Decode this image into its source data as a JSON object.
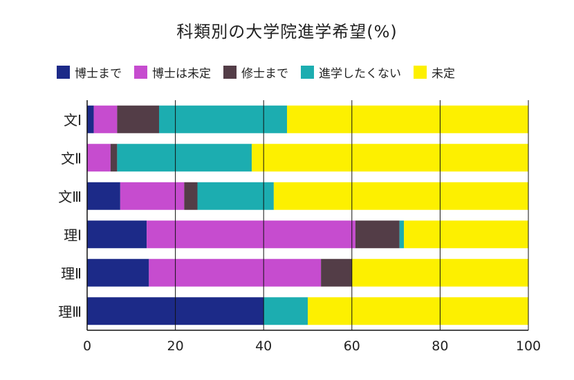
{
  "chart_data": {
    "type": "bar",
    "orientation": "horizontal",
    "stacked": true,
    "title": "科類別の大学院進学希望(%)",
    "categories": [
      "文Ⅰ",
      "文Ⅱ",
      "文Ⅲ",
      "理Ⅰ",
      "理Ⅱ",
      "理Ⅲ"
    ],
    "series": [
      {
        "name": "博士まで",
        "color": "#1c2a88",
        "values": [
          1.5,
          0,
          7.5,
          13.5,
          14,
          40
        ]
      },
      {
        "name": "博士は未定",
        "color": "#c64ccf",
        "values": [
          5.3,
          5.3,
          14.5,
          47.3,
          39,
          0
        ]
      },
      {
        "name": "修士まで",
        "color": "#533d47",
        "values": [
          9.5,
          1.5,
          3,
          10,
          7,
          0
        ]
      },
      {
        "name": "進学したくない",
        "color": "#1cadb0",
        "values": [
          29,
          30.5,
          17.3,
          1,
          0,
          10
        ]
      },
      {
        "name": "未定",
        "color": "#fdf000",
        "values": [
          54.7,
          62.7,
          57.7,
          28.2,
          40,
          50
        ]
      }
    ],
    "xlim": [
      0,
      100
    ],
    "xticks": [
      0,
      20,
      40,
      60,
      80,
      100
    ],
    "xlabel": "",
    "ylabel": "",
    "grid": "vertical",
    "legend_position": "top"
  }
}
